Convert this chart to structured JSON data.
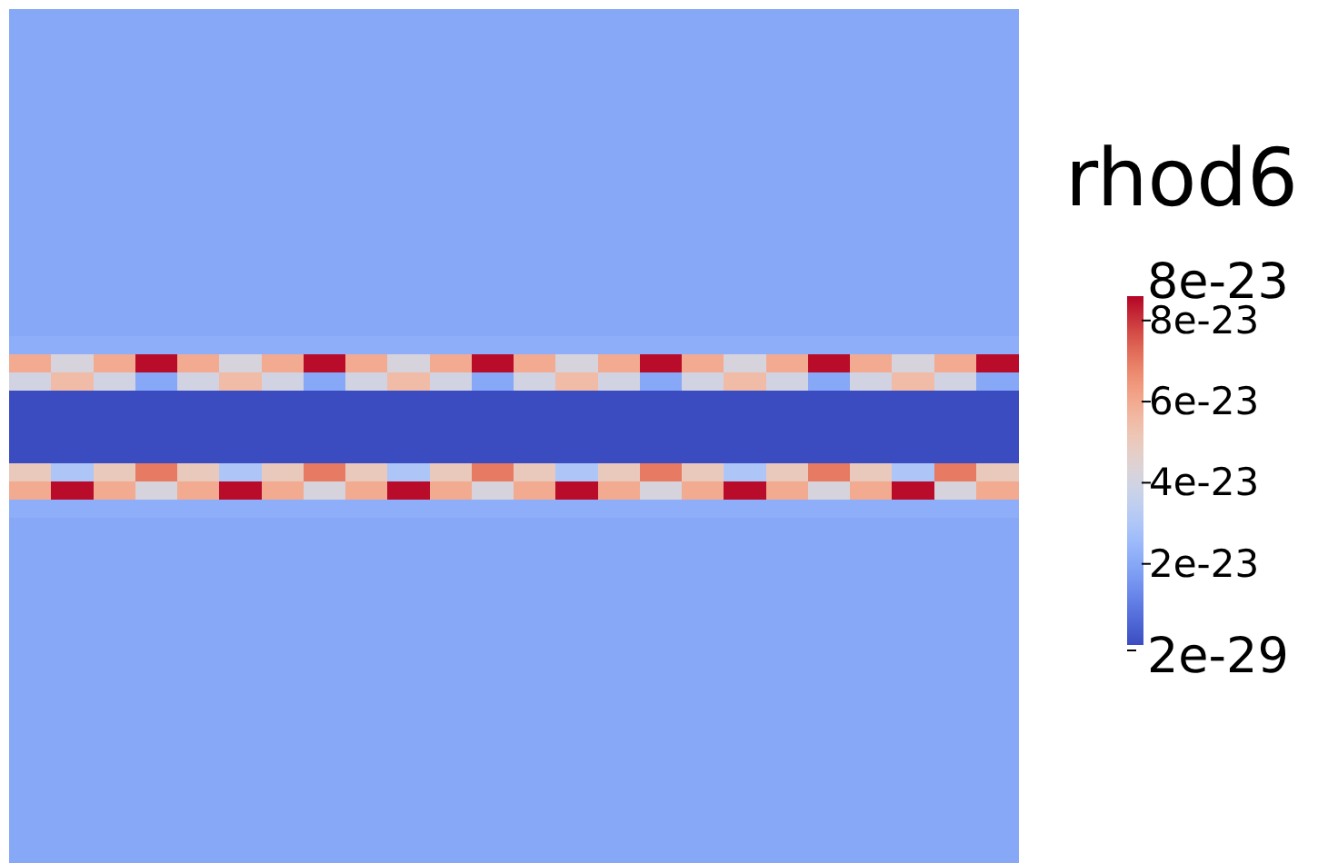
{
  "chart_data": {
    "type": "heatmap",
    "clabel": "rhod6",
    "clim": [
      2e-29,
      8.6e-23
    ],
    "cticks": [
      {
        "value": 2e-29,
        "label": "2e-29"
      },
      {
        "value": 2e-23,
        "label": "2e-23"
      },
      {
        "value": 4e-23,
        "label": "4e-23"
      },
      {
        "value": 6e-23,
        "label": "6e-23"
      },
      {
        "value": 8e-23,
        "label": "8e-23"
      },
      {
        "value": 8.6e-23,
        "label": "8e-23"
      }
    ],
    "categories": [
      null,
      null,
      null,
      null,
      null,
      null,
      null,
      null,
      null,
      null,
      null,
      null,
      null,
      null,
      null,
      null,
      null,
      null,
      null,
      null,
      null,
      null,
      null,
      null
    ],
    "y_categories": [
      null,
      null,
      null,
      null,
      null,
      null,
      null,
      null,
      null,
      null,
      null,
      null,
      null,
      null,
      null,
      null,
      null,
      null,
      null,
      null,
      null,
      null,
      null,
      null,
      null,
      null,
      null,
      null,
      null,
      null,
      null,
      null,
      null,
      null,
      null,
      null,
      null,
      null,
      null,
      null,
      null,
      null,
      null,
      null,
      null,
      null,
      null
    ],
    "cells": [
      [
        2e-23,
        2e-23,
        2e-23,
        2e-23,
        2e-23,
        2e-23,
        2e-23,
        2e-23,
        2e-23,
        2e-23,
        2e-23,
        2e-23,
        2e-23,
        2e-23,
        2e-23,
        2e-23,
        2e-23,
        2e-23,
        2e-23,
        2e-23,
        2e-23,
        2e-23,
        2e-23,
        2e-23
      ],
      [
        2e-23,
        2e-23,
        2e-23,
        2e-23,
        2e-23,
        2e-23,
        2e-23,
        2e-23,
        2e-23,
        2e-23,
        2e-23,
        2e-23,
        2e-23,
        2e-23,
        2e-23,
        2e-23,
        2e-23,
        2e-23,
        2e-23,
        2e-23,
        2e-23,
        2e-23,
        2e-23,
        2e-23
      ],
      [
        2e-23,
        2e-23,
        2e-23,
        2e-23,
        2e-23,
        2e-23,
        2e-23,
        2e-23,
        2e-23,
        2e-23,
        2e-23,
        2e-23,
        2e-23,
        2e-23,
        2e-23,
        2e-23,
        2e-23,
        2e-23,
        2e-23,
        2e-23,
        2e-23,
        2e-23,
        2e-23,
        2e-23
      ],
      [
        2e-23,
        2e-23,
        2e-23,
        2e-23,
        2e-23,
        2e-23,
        2e-23,
        2e-23,
        2e-23,
        2e-23,
        2e-23,
        2e-23,
        2e-23,
        2e-23,
        2e-23,
        2e-23,
        2e-23,
        2e-23,
        2e-23,
        2e-23,
        2e-23,
        2e-23,
        2e-23,
        2e-23
      ],
      [
        2e-23,
        2e-23,
        2e-23,
        2e-23,
        2e-23,
        2e-23,
        2e-23,
        2e-23,
        2e-23,
        2e-23,
        2e-23,
        2e-23,
        2e-23,
        2e-23,
        2e-23,
        2e-23,
        2e-23,
        2e-23,
        2e-23,
        2e-23,
        2e-23,
        2e-23,
        2e-23,
        2e-23
      ],
      [
        2e-23,
        2e-23,
        2e-23,
        2e-23,
        2e-23,
        2e-23,
        2e-23,
        2e-23,
        2e-23,
        2e-23,
        2e-23,
        2e-23,
        2e-23,
        2e-23,
        2e-23,
        2e-23,
        2e-23,
        2e-23,
        2e-23,
        2e-23,
        2e-23,
        2e-23,
        2e-23,
        2e-23
      ],
      [
        2e-23,
        2e-23,
        2e-23,
        2e-23,
        2e-23,
        2e-23,
        2e-23,
        2e-23,
        2e-23,
        2e-23,
        2e-23,
        2e-23,
        2e-23,
        2e-23,
        2e-23,
        2e-23,
        2e-23,
        2e-23,
        2e-23,
        2e-23,
        2e-23,
        2e-23,
        2e-23,
        2e-23
      ],
      [
        2e-23,
        2e-23,
        2e-23,
        2e-23,
        2e-23,
        2e-23,
        2e-23,
        2e-23,
        2e-23,
        2e-23,
        2e-23,
        2e-23,
        2e-23,
        2e-23,
        2e-23,
        2e-23,
        2e-23,
        2e-23,
        2e-23,
        2e-23,
        2e-23,
        2e-23,
        2e-23,
        2e-23
      ],
      [
        2e-23,
        2e-23,
        2e-23,
        2e-23,
        2e-23,
        2e-23,
        2e-23,
        2e-23,
        2e-23,
        2e-23,
        2e-23,
        2e-23,
        2e-23,
        2e-23,
        2e-23,
        2e-23,
        2e-23,
        2e-23,
        2e-23,
        2e-23,
        2e-23,
        2e-23,
        2e-23,
        2e-23
      ],
      [
        2e-23,
        2e-23,
        2e-23,
        2e-23,
        2e-23,
        2e-23,
        2e-23,
        2e-23,
        2e-23,
        2e-23,
        2e-23,
        2e-23,
        2e-23,
        2e-23,
        2e-23,
        2e-23,
        2e-23,
        2e-23,
        2e-23,
        2e-23,
        2e-23,
        2e-23,
        2e-23,
        2e-23
      ],
      [
        2e-23,
        2e-23,
        2e-23,
        2e-23,
        2e-23,
        2e-23,
        2e-23,
        2e-23,
        2e-23,
        2e-23,
        2e-23,
        2e-23,
        2e-23,
        2e-23,
        2e-23,
        2e-23,
        2e-23,
        2e-23,
        2e-23,
        2e-23,
        2e-23,
        2e-23,
        2e-23,
        2e-23
      ],
      [
        2e-23,
        2e-23,
        2e-23,
        2e-23,
        2e-23,
        2e-23,
        2e-23,
        2e-23,
        2e-23,
        2e-23,
        2e-23,
        2e-23,
        2e-23,
        2e-23,
        2e-23,
        2e-23,
        2e-23,
        2e-23,
        2e-23,
        2e-23,
        2e-23,
        2e-23,
        2e-23,
        2e-23
      ],
      [
        2e-23,
        2e-23,
        2e-23,
        2e-23,
        2e-23,
        2e-23,
        2e-23,
        2e-23,
        2e-23,
        2e-23,
        2e-23,
        2e-23,
        2e-23,
        2e-23,
        2e-23,
        2e-23,
        2e-23,
        2e-23,
        2e-23,
        2e-23,
        2e-23,
        2e-23,
        2e-23,
        2e-23
      ],
      [
        2e-23,
        2e-23,
        2e-23,
        2e-23,
        2e-23,
        2e-23,
        2e-23,
        2e-23,
        2e-23,
        2e-23,
        2e-23,
        2e-23,
        2e-23,
        2e-23,
        2e-23,
        2e-23,
        2e-23,
        2e-23,
        2e-23,
        2e-23,
        2e-23,
        2e-23,
        2e-23,
        2e-23
      ],
      [
        2e-23,
        2e-23,
        2e-23,
        2e-23,
        2e-23,
        2e-23,
        2e-23,
        2e-23,
        2e-23,
        2e-23,
        2e-23,
        2e-23,
        2e-23,
        2e-23,
        2e-23,
        2e-23,
        2e-23,
        2e-23,
        2e-23,
        2e-23,
        2e-23,
        2e-23,
        2e-23,
        2e-23
      ],
      [
        2e-23,
        2e-23,
        2e-23,
        2e-23,
        2e-23,
        2e-23,
        2e-23,
        2e-23,
        2e-23,
        2e-23,
        2e-23,
        2e-23,
        2e-23,
        2e-23,
        2e-23,
        2e-23,
        2e-23,
        2e-23,
        2e-23,
        2e-23,
        2e-23,
        2e-23,
        2e-23,
        2e-23
      ],
      [
        2e-23,
        2e-23,
        2e-23,
        2e-23,
        2e-23,
        2e-23,
        2e-23,
        2e-23,
        2e-23,
        2e-23,
        2e-23,
        2e-23,
        2e-23,
        2e-23,
        2e-23,
        2e-23,
        2e-23,
        2e-23,
        2e-23,
        2e-23,
        2e-23,
        2e-23,
        2e-23,
        2e-23
      ],
      [
        2e-23,
        2e-23,
        2e-23,
        2e-23,
        2e-23,
        2e-23,
        2e-23,
        2e-23,
        2e-23,
        2e-23,
        2e-23,
        2e-23,
        2e-23,
        2e-23,
        2e-23,
        2e-23,
        2e-23,
        2e-23,
        2e-23,
        2e-23,
        2e-23,
        2e-23,
        2e-23,
        2e-23
      ],
      [
        2.2e-23,
        2.2e-23,
        2.2e-23,
        2.2e-23,
        2.2e-23,
        2.2e-23,
        2.2e-23,
        2.2e-23,
        2.2e-23,
        2.2e-23,
        2.2e-23,
        2.2e-23,
        2.2e-23,
        2.2e-23,
        2.2e-23,
        2.2e-23,
        2.2e-23,
        2.2e-23,
        2.2e-23,
        2.2e-23,
        2.2e-23,
        2.2e-23,
        2.2e-23,
        2.2e-23
      ],
      [
        6e-23,
        4.2e-23,
        6e-23,
        8.5e-23,
        6e-23,
        4.2e-23,
        6e-23,
        8.5e-23,
        6e-23,
        4.2e-23,
        6e-23,
        8.5e-23,
        6e-23,
        4.2e-23,
        6e-23,
        8.5e-23,
        6e-23,
        4.2e-23,
        6e-23,
        8.5e-23,
        6e-23,
        4.2e-23,
        6e-23,
        8.5e-23
      ],
      [
        4e-23,
        5.5e-23,
        4e-23,
        2e-23,
        4e-23,
        5.5e-23,
        4e-23,
        2e-23,
        4e-23,
        5.5e-23,
        4e-23,
        2e-23,
        4e-23,
        5.5e-23,
        4e-23,
        2e-23,
        4e-23,
        5.5e-23,
        4e-23,
        2e-23,
        4e-23,
        5.5e-23,
        4e-23,
        2e-23
      ],
      [
        2e-29,
        2e-29,
        2e-29,
        2e-29,
        2e-29,
        2e-29,
        2e-29,
        2e-29,
        2e-29,
        2e-29,
        2e-29,
        2e-29,
        2e-29,
        2e-29,
        2e-29,
        2e-29,
        2e-29,
        2e-29,
        2e-29,
        2e-29,
        2e-29,
        2e-29,
        2e-29,
        2e-29
      ],
      [
        2e-29,
        2e-29,
        2e-29,
        2e-29,
        2e-29,
        2e-29,
        2e-29,
        2e-29,
        2e-29,
        2e-29,
        2e-29,
        2e-29,
        2e-29,
        2e-29,
        2e-29,
        2e-29,
        2e-29,
        2e-29,
        2e-29,
        2e-29,
        2e-29,
        2e-29,
        2e-29,
        2e-29
      ],
      [
        2e-29,
        2e-29,
        2e-29,
        2e-29,
        2e-29,
        2e-29,
        2e-29,
        2e-29,
        2e-29,
        2e-29,
        2e-29,
        2e-29,
        2e-29,
        2e-29,
        2e-29,
        2e-29,
        2e-29,
        2e-29,
        2e-29,
        2e-29,
        2e-29,
        2e-29,
        2e-29,
        2e-29
      ],
      [
        2e-29,
        2e-29,
        2e-29,
        2e-29,
        2e-29,
        2e-29,
        2e-29,
        2e-29,
        2e-29,
        2e-29,
        2e-29,
        2e-29,
        2e-29,
        2e-29,
        2e-29,
        2e-29,
        2e-29,
        2e-29,
        2e-29,
        2e-29,
        2e-29,
        2e-29,
        2e-29,
        2e-29
      ],
      [
        5e-23,
        3e-23,
        5e-23,
        7e-23,
        5e-23,
        3e-23,
        5e-23,
        7e-23,
        5e-23,
        3e-23,
        5e-23,
        7e-23,
        5e-23,
        3e-23,
        5e-23,
        7e-23,
        5e-23,
        3e-23,
        5e-23,
        7e-23,
        5e-23,
        3e-23,
        7e-23,
        5e-23
      ],
      [
        6e-23,
        8.5e-23,
        6e-23,
        4.2e-23,
        6e-23,
        8.5e-23,
        6e-23,
        4.2e-23,
        6e-23,
        8.5e-23,
        6e-23,
        4.2e-23,
        6e-23,
        8.5e-23,
        6e-23,
        4.2e-23,
        6e-23,
        8.5e-23,
        6e-23,
        4.2e-23,
        6e-23,
        8.5e-23,
        4.2e-23,
        6e-23
      ],
      [
        2.2e-23,
        2.2e-23,
        2.2e-23,
        2.2e-23,
        2.2e-23,
        2.2e-23,
        2.2e-23,
        2.2e-23,
        2.2e-23,
        2.2e-23,
        2.2e-23,
        2.2e-23,
        2.2e-23,
        2.2e-23,
        2.2e-23,
        2.2e-23,
        2.2e-23,
        2.2e-23,
        2.2e-23,
        2.2e-23,
        2.2e-23,
        2.2e-23,
        2.2e-23,
        2.2e-23
      ],
      [
        2e-23,
        2e-23,
        2e-23,
        2e-23,
        2e-23,
        2e-23,
        2e-23,
        2e-23,
        2e-23,
        2e-23,
        2e-23,
        2e-23,
        2e-23,
        2e-23,
        2e-23,
        2e-23,
        2e-23,
        2e-23,
        2e-23,
        2e-23,
        2e-23,
        2e-23,
        2e-23,
        2e-23
      ],
      [
        2e-23,
        2e-23,
        2e-23,
        2e-23,
        2e-23,
        2e-23,
        2e-23,
        2e-23,
        2e-23,
        2e-23,
        2e-23,
        2e-23,
        2e-23,
        2e-23,
        2e-23,
        2e-23,
        2e-23,
        2e-23,
        2e-23,
        2e-23,
        2e-23,
        2e-23,
        2e-23,
        2e-23
      ],
      [
        2e-23,
        2e-23,
        2e-23,
        2e-23,
        2e-23,
        2e-23,
        2e-23,
        2e-23,
        2e-23,
        2e-23,
        2e-23,
        2e-23,
        2e-23,
        2e-23,
        2e-23,
        2e-23,
        2e-23,
        2e-23,
        2e-23,
        2e-23,
        2e-23,
        2e-23,
        2e-23,
        2e-23
      ],
      [
        2e-23,
        2e-23,
        2e-23,
        2e-23,
        2e-23,
        2e-23,
        2e-23,
        2e-23,
        2e-23,
        2e-23,
        2e-23,
        2e-23,
        2e-23,
        2e-23,
        2e-23,
        2e-23,
        2e-23,
        2e-23,
        2e-23,
        2e-23,
        2e-23,
        2e-23,
        2e-23,
        2e-23
      ],
      [
        2e-23,
        2e-23,
        2e-23,
        2e-23,
        2e-23,
        2e-23,
        2e-23,
        2e-23,
        2e-23,
        2e-23,
        2e-23,
        2e-23,
        2e-23,
        2e-23,
        2e-23,
        2e-23,
        2e-23,
        2e-23,
        2e-23,
        2e-23,
        2e-23,
        2e-23,
        2e-23,
        2e-23
      ],
      [
        2e-23,
        2e-23,
        2e-23,
        2e-23,
        2e-23,
        2e-23,
        2e-23,
        2e-23,
        2e-23,
        2e-23,
        2e-23,
        2e-23,
        2e-23,
        2e-23,
        2e-23,
        2e-23,
        2e-23,
        2e-23,
        2e-23,
        2e-23,
        2e-23,
        2e-23,
        2e-23,
        2e-23
      ],
      [
        2e-23,
        2e-23,
        2e-23,
        2e-23,
        2e-23,
        2e-23,
        2e-23,
        2e-23,
        2e-23,
        2e-23,
        2e-23,
        2e-23,
        2e-23,
        2e-23,
        2e-23,
        2e-23,
        2e-23,
        2e-23,
        2e-23,
        2e-23,
        2e-23,
        2e-23,
        2e-23,
        2e-23
      ],
      [
        2e-23,
        2e-23,
        2e-23,
        2e-23,
        2e-23,
        2e-23,
        2e-23,
        2e-23,
        2e-23,
        2e-23,
        2e-23,
        2e-23,
        2e-23,
        2e-23,
        2e-23,
        2e-23,
        2e-23,
        2e-23,
        2e-23,
        2e-23,
        2e-23,
        2e-23,
        2e-23,
        2e-23
      ],
      [
        2e-23,
        2e-23,
        2e-23,
        2e-23,
        2e-23,
        2e-23,
        2e-23,
        2e-23,
        2e-23,
        2e-23,
        2e-23,
        2e-23,
        2e-23,
        2e-23,
        2e-23,
        2e-23,
        2e-23,
        2e-23,
        2e-23,
        2e-23,
        2e-23,
        2e-23,
        2e-23,
        2e-23
      ],
      [
        2e-23,
        2e-23,
        2e-23,
        2e-23,
        2e-23,
        2e-23,
        2e-23,
        2e-23,
        2e-23,
        2e-23,
        2e-23,
        2e-23,
        2e-23,
        2e-23,
        2e-23,
        2e-23,
        2e-23,
        2e-23,
        2e-23,
        2e-23,
        2e-23,
        2e-23,
        2e-23,
        2e-23
      ],
      [
        2e-23,
        2e-23,
        2e-23,
        2e-23,
        2e-23,
        2e-23,
        2e-23,
        2e-23,
        2e-23,
        2e-23,
        2e-23,
        2e-23,
        2e-23,
        2e-23,
        2e-23,
        2e-23,
        2e-23,
        2e-23,
        2e-23,
        2e-23,
        2e-23,
        2e-23,
        2e-23,
        2e-23
      ],
      [
        2e-23,
        2e-23,
        2e-23,
        2e-23,
        2e-23,
        2e-23,
        2e-23,
        2e-23,
        2e-23,
        2e-23,
        2e-23,
        2e-23,
        2e-23,
        2e-23,
        2e-23,
        2e-23,
        2e-23,
        2e-23,
        2e-23,
        2e-23,
        2e-23,
        2e-23,
        2e-23,
        2e-23
      ],
      [
        2e-23,
        2e-23,
        2e-23,
        2e-23,
        2e-23,
        2e-23,
        2e-23,
        2e-23,
        2e-23,
        2e-23,
        2e-23,
        2e-23,
        2e-23,
        2e-23,
        2e-23,
        2e-23,
        2e-23,
        2e-23,
        2e-23,
        2e-23,
        2e-23,
        2e-23,
        2e-23,
        2e-23
      ],
      [
        2e-23,
        2e-23,
        2e-23,
        2e-23,
        2e-23,
        2e-23,
        2e-23,
        2e-23,
        2e-23,
        2e-23,
        2e-23,
        2e-23,
        2e-23,
        2e-23,
        2e-23,
        2e-23,
        2e-23,
        2e-23,
        2e-23,
        2e-23,
        2e-23,
        2e-23,
        2e-23,
        2e-23
      ],
      [
        2e-23,
        2e-23,
        2e-23,
        2e-23,
        2e-23,
        2e-23,
        2e-23,
        2e-23,
        2e-23,
        2e-23,
        2e-23,
        2e-23,
        2e-23,
        2e-23,
        2e-23,
        2e-23,
        2e-23,
        2e-23,
        2e-23,
        2e-23,
        2e-23,
        2e-23,
        2e-23,
        2e-23
      ],
      [
        2e-23,
        2e-23,
        2e-23,
        2e-23,
        2e-23,
        2e-23,
        2e-23,
        2e-23,
        2e-23,
        2e-23,
        2e-23,
        2e-23,
        2e-23,
        2e-23,
        2e-23,
        2e-23,
        2e-23,
        2e-23,
        2e-23,
        2e-23,
        2e-23,
        2e-23,
        2e-23,
        2e-23
      ],
      [
        2e-23,
        2e-23,
        2e-23,
        2e-23,
        2e-23,
        2e-23,
        2e-23,
        2e-23,
        2e-23,
        2e-23,
        2e-23,
        2e-23,
        2e-23,
        2e-23,
        2e-23,
        2e-23,
        2e-23,
        2e-23,
        2e-23,
        2e-23,
        2e-23,
        2e-23,
        2e-23,
        2e-23
      ],
      [
        2e-23,
        2e-23,
        2e-23,
        2e-23,
        2e-23,
        2e-23,
        2e-23,
        2e-23,
        2e-23,
        2e-23,
        2e-23,
        2e-23,
        2e-23,
        2e-23,
        2e-23,
        2e-23,
        2e-23,
        2e-23,
        2e-23,
        2e-23,
        2e-23,
        2e-23,
        2e-23,
        2e-23
      ],
      [
        2e-23,
        2e-23,
        2e-23,
        2e-23,
        2e-23,
        2e-23,
        2e-23,
        2e-23,
        2e-23,
        2e-23,
        2e-23,
        2e-23,
        2e-23,
        2e-23,
        2e-23,
        2e-23,
        2e-23,
        2e-23,
        2e-23,
        2e-23,
        2e-23,
        2e-23,
        2e-23,
        2e-23
      ]
    ]
  }
}
